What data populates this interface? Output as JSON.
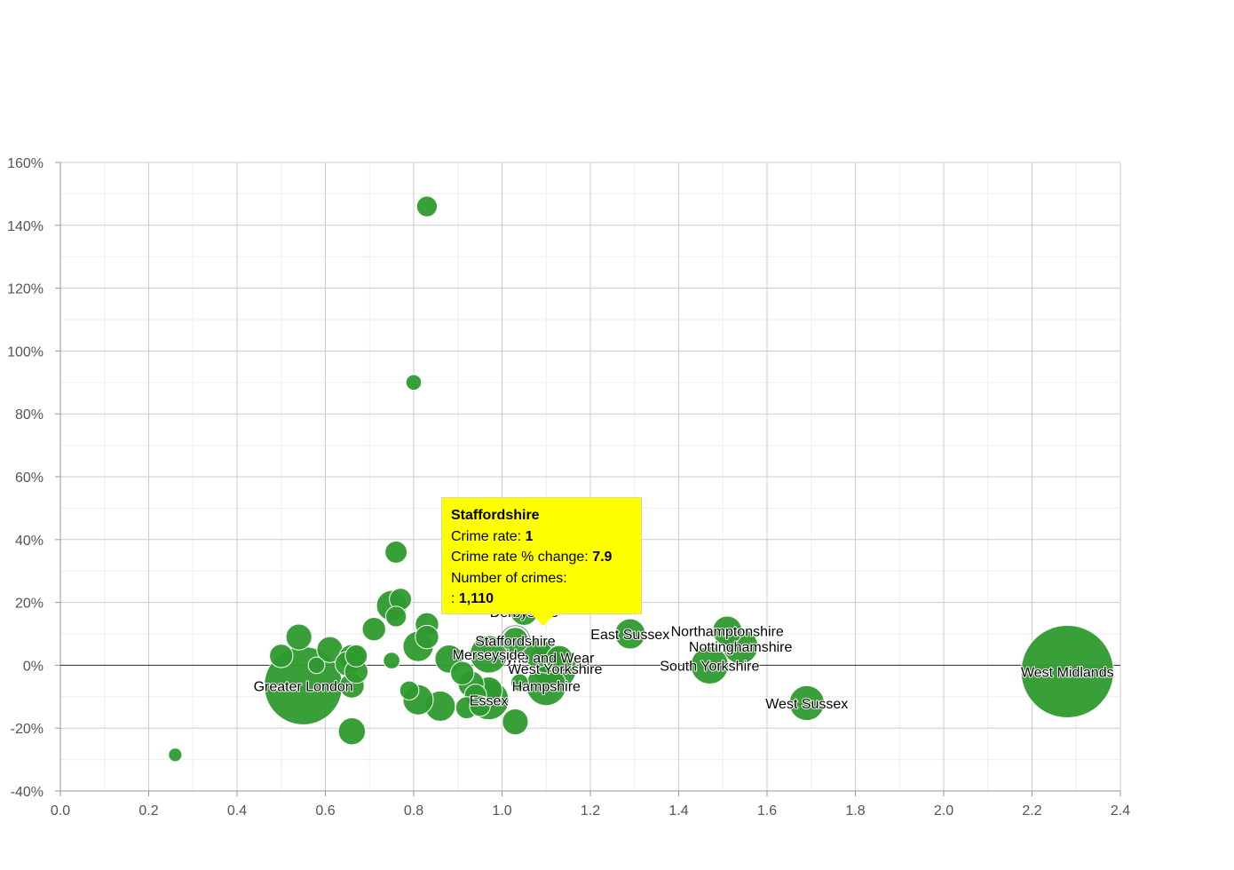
{
  "chart_data": {
    "type": "scatter",
    "title": "",
    "xlabel": "",
    "ylabel": "",
    "xlim": [
      0,
      2.4
    ],
    "ylim": [
      -40,
      160
    ],
    "x_ticks": [
      "0.0",
      "0.2",
      "0.4",
      "0.6",
      "0.8",
      "1.0",
      "1.2",
      "1.4",
      "1.6",
      "1.8",
      "2.0",
      "2.2",
      "2.4"
    ],
    "y_ticks": [
      "-40%",
      "-20%",
      "0%",
      "20%",
      "40%",
      "60%",
      "80%",
      "100%",
      "120%",
      "140%",
      "160%"
    ],
    "point_color": "#2e9a2e",
    "points": [
      {
        "x": 2.28,
        "y": -2,
        "size": 14000,
        "label": "West Midlands"
      },
      {
        "x": 0.55,
        "y": -6.5,
        "size": 10000,
        "label": "Greater London"
      },
      {
        "x": 1.69,
        "y": -12,
        "size": 2000,
        "label": "West Sussex"
      },
      {
        "x": 1.47,
        "y": 0,
        "size": 2300,
        "label": "South Yorkshire"
      },
      {
        "x": 1.54,
        "y": 6,
        "size": 2000,
        "label": "Nottinghamshire"
      },
      {
        "x": 1.51,
        "y": 11,
        "size": 1400,
        "label": "Northamptonshire"
      },
      {
        "x": 1.29,
        "y": 10,
        "size": 1500,
        "label": "East Sussex"
      },
      {
        "x": 1.03,
        "y": 7.9,
        "size": 1110,
        "label": "Staffordshire",
        "highlight": true
      },
      {
        "x": 0.97,
        "y": -11,
        "size": 2600,
        "label": "Essex"
      },
      {
        "x": 1.1,
        "y": -6.5,
        "size": 2600,
        "label": "Hampshire"
      },
      {
        "x": 1.12,
        "y": -1,
        "size": 3000,
        "label": "West Yorkshire"
      },
      {
        "x": 1.1,
        "y": 2.5,
        "size": 1600,
        "label": "Tyne and Wear"
      },
      {
        "x": 0.97,
        "y": 3.5,
        "size": 2300,
        "label": "Merseyside"
      },
      {
        "x": 1.05,
        "y": 17,
        "size": 1200,
        "label": "Derbyshire"
      },
      {
        "x": 0.83,
        "y": 146,
        "size": 700
      },
      {
        "x": 0.8,
        "y": 90,
        "size": 400
      },
      {
        "x": 0.76,
        "y": 36,
        "size": 800
      },
      {
        "x": 0.75,
        "y": 19,
        "size": 1500
      },
      {
        "x": 0.77,
        "y": 21,
        "size": 800
      },
      {
        "x": 0.76,
        "y": 15.5,
        "size": 700
      },
      {
        "x": 0.71,
        "y": 11.5,
        "size": 900
      },
      {
        "x": 0.83,
        "y": 13,
        "size": 900
      },
      {
        "x": 0.83,
        "y": 9,
        "size": 900
      },
      {
        "x": 0.81,
        "y": 6,
        "size": 1500
      },
      {
        "x": 0.88,
        "y": 2,
        "size": 1300
      },
      {
        "x": 0.91,
        "y": -2.5,
        "size": 900
      },
      {
        "x": 0.93,
        "y": -6,
        "size": 1100
      },
      {
        "x": 0.94,
        "y": -9.5,
        "size": 800
      },
      {
        "x": 0.97,
        "y": -8,
        "size": 1200
      },
      {
        "x": 0.95,
        "y": -13,
        "size": 700
      },
      {
        "x": 0.92,
        "y": -13.5,
        "size": 800
      },
      {
        "x": 0.86,
        "y": -13,
        "size": 1500
      },
      {
        "x": 0.81,
        "y": -11,
        "size": 1500
      },
      {
        "x": 0.79,
        "y": -8,
        "size": 600
      },
      {
        "x": 0.75,
        "y": 1.5,
        "size": 450
      },
      {
        "x": 0.54,
        "y": 9,
        "size": 1100
      },
      {
        "x": 0.5,
        "y": 3,
        "size": 900
      },
      {
        "x": 0.58,
        "y": 0,
        "size": 450
      },
      {
        "x": 0.61,
        "y": 5,
        "size": 1100
      },
      {
        "x": 0.65,
        "y": 0.5,
        "size": 1000
      },
      {
        "x": 0.66,
        "y": 2.5,
        "size": 1100
      },
      {
        "x": 0.67,
        "y": 3,
        "size": 800
      },
      {
        "x": 0.67,
        "y": -2,
        "size": 900
      },
      {
        "x": 0.66,
        "y": -6.5,
        "size": 1000
      },
      {
        "x": 0.66,
        "y": -21,
        "size": 1200
      },
      {
        "x": 1.03,
        "y": -18,
        "size": 1100
      },
      {
        "x": 1.04,
        "y": -5.5,
        "size": 500
      },
      {
        "x": 1.08,
        "y": 4,
        "size": 1400
      },
      {
        "x": 1.13,
        "y": 2,
        "size": 1200
      },
      {
        "x": 0.26,
        "y": -28.5,
        "size": 300
      }
    ]
  },
  "tooltip": {
    "title": "Staffordshire",
    "crime_rate_label": "Crime rate:",
    "crime_rate_value": "1",
    "change_label": "Crime rate % change:",
    "change_value": "7.9",
    "count_label": "Number of crimes:",
    "count_prefix": ":",
    "count_value": "1,110"
  }
}
